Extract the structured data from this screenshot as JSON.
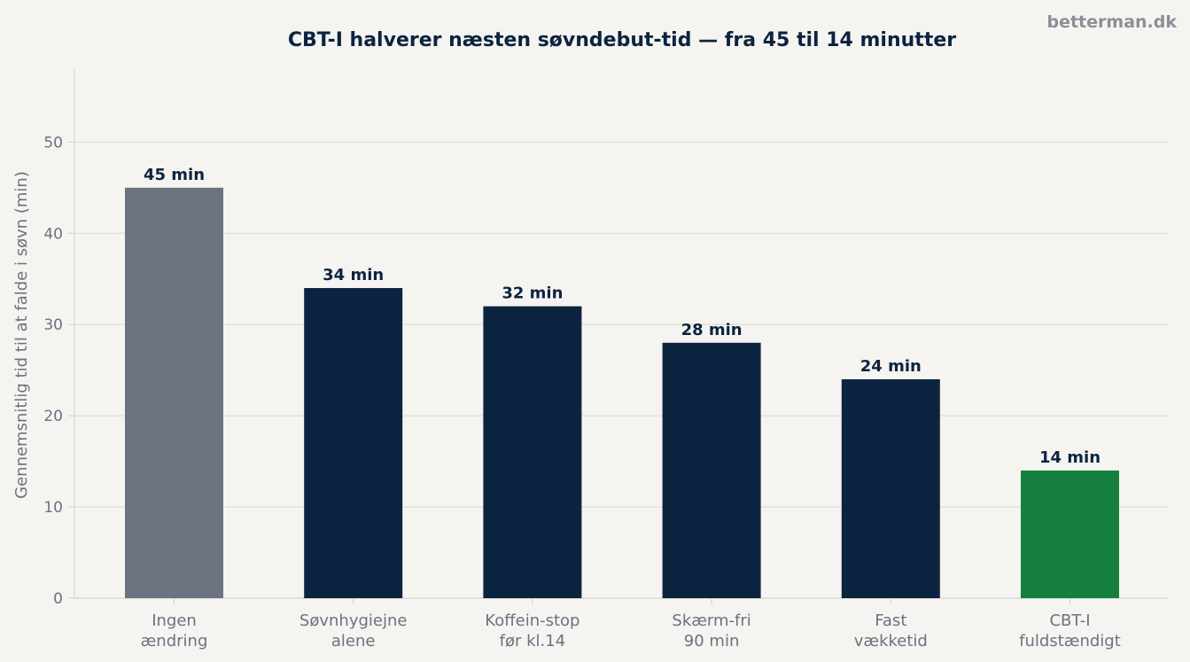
{
  "brand": "betterman.dk",
  "chart_data": {
    "type": "bar",
    "title": "CBT-I halverer næsten søvndebut-tid — fra 45 til 14 minutter",
    "xlabel": "",
    "ylabel": "Gennemsnitlig tid til at falde i søvn (min)",
    "ylim": [
      0,
      58
    ],
    "yticks": [
      0,
      10,
      20,
      30,
      40,
      50
    ],
    "grid": true,
    "categories": [
      [
        "Ingen",
        "ændring"
      ],
      [
        "Søvnhygiejne",
        "alene"
      ],
      [
        "Koffein-stop",
        "før kl.14"
      ],
      [
        "Skærm-fri",
        "90 min"
      ],
      [
        "Fast",
        "vækketid"
      ],
      [
        "CBT-I",
        "fuldstændigt"
      ]
    ],
    "values": [
      45,
      34,
      32,
      28,
      24,
      14
    ],
    "value_labels": [
      "45 min",
      "34 min",
      "32 min",
      "28 min",
      "24 min",
      "14 min"
    ],
    "colors": [
      "#6b7280",
      "#0c2340",
      "#0c2340",
      "#0c2340",
      "#0c2340",
      "#15803d"
    ]
  }
}
